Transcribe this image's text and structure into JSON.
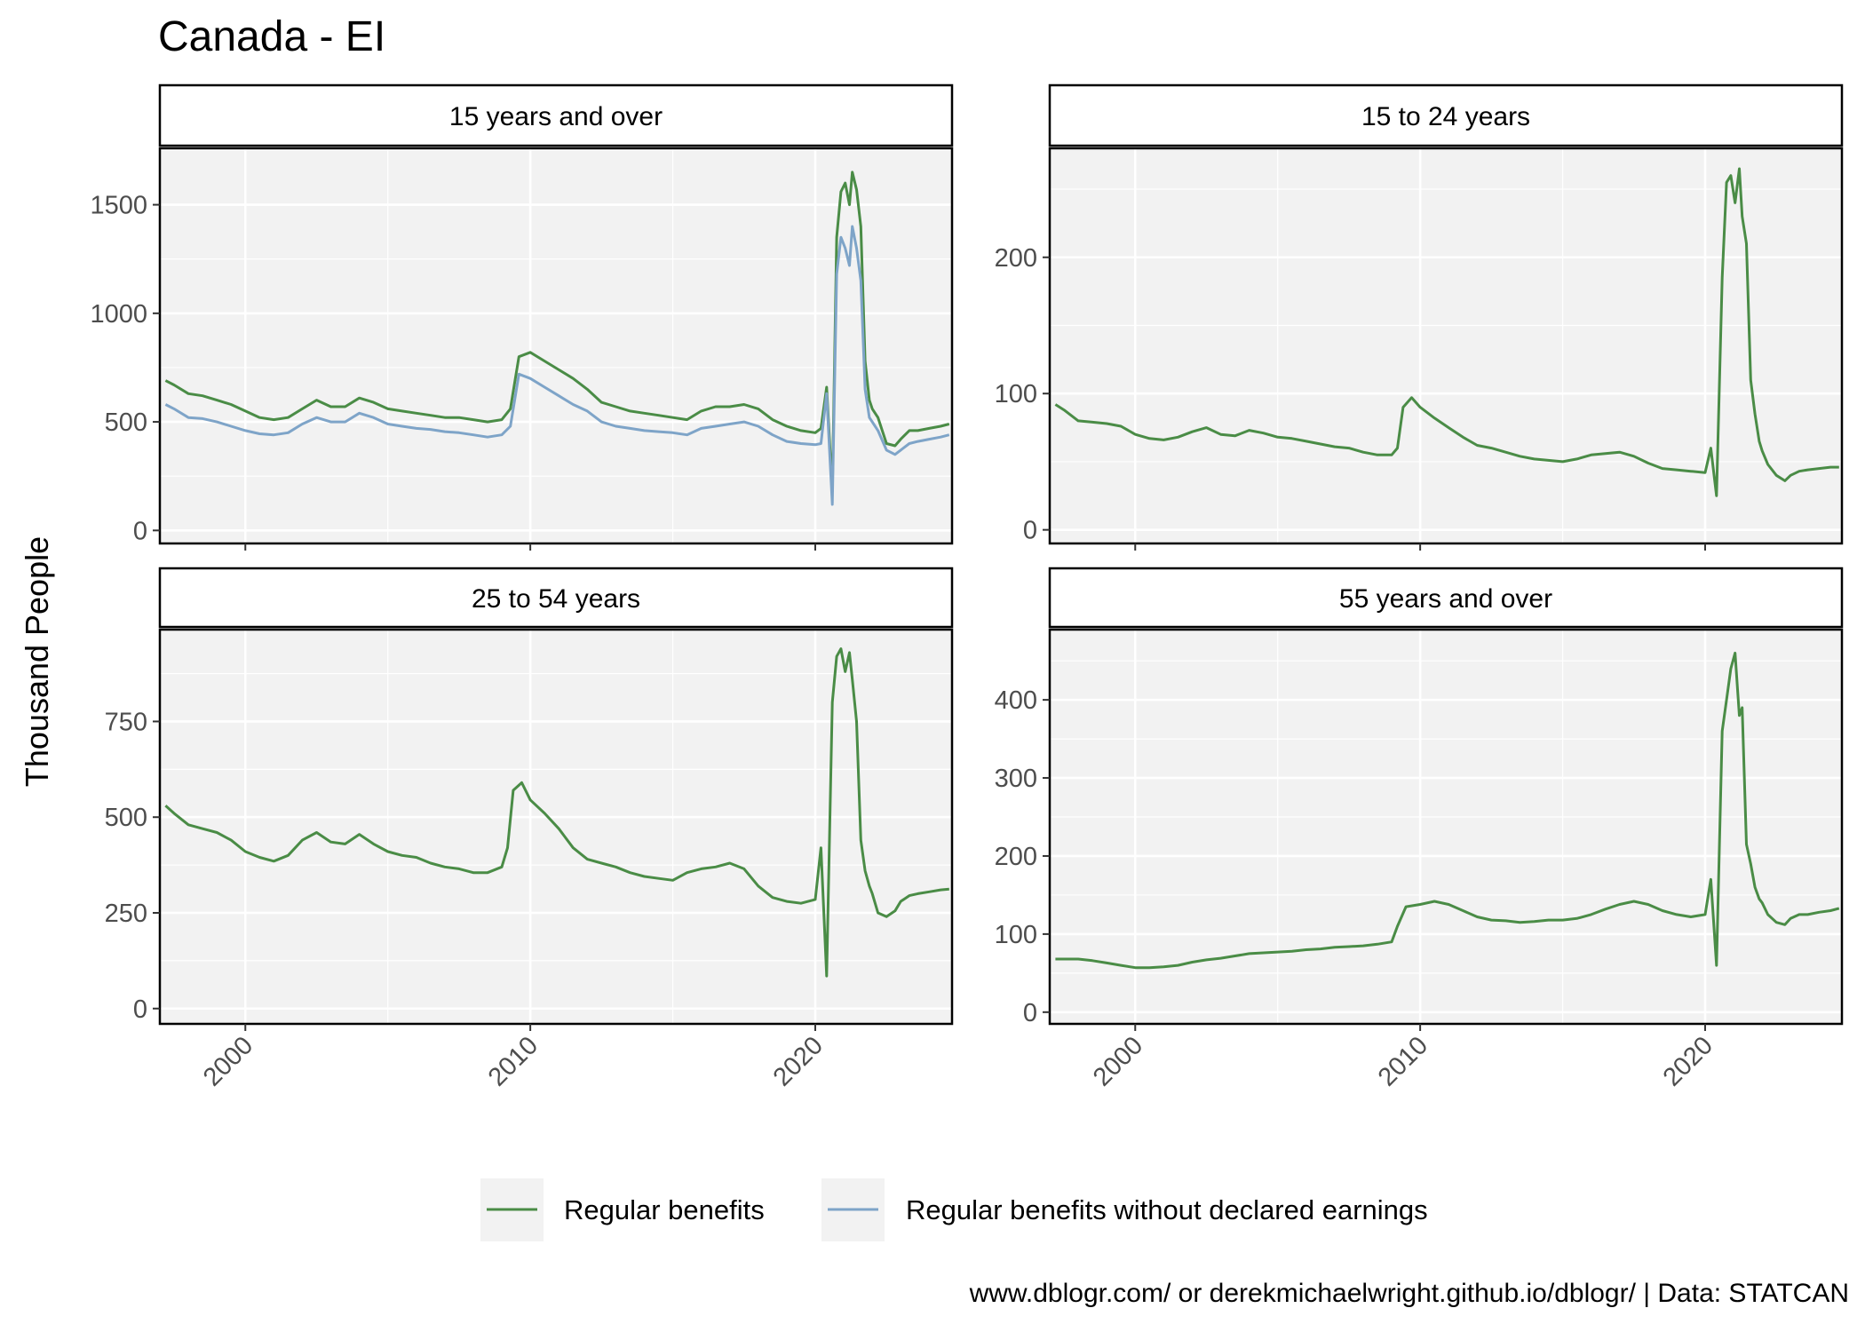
{
  "title": "Canada - EI",
  "ylabel": "Thousand People",
  "caption": "www.dblogr.com/ or derekmichaelwright.github.io/dblogr/ | Data: STATCAN",
  "colors": {
    "regular": "#4a8c46",
    "without_earnings": "#7ea4c8",
    "panel_bg": "#f2f2f2",
    "grid": "#ffffff"
  },
  "chart_data": {
    "type": "line",
    "grid": true,
    "legend_position": "bottom",
    "x_ticks": [
      2000,
      2010,
      2020
    ],
    "xlim": [
      1997,
      2024.8
    ],
    "legend": [
      {
        "name": "Regular benefits",
        "color": "#4a8c46"
      },
      {
        "name": "Regular benefits without declared earnings",
        "color": "#7ea4c8"
      }
    ],
    "panels": [
      {
        "label": "15 years and over",
        "ylim": [
          -60,
          1760
        ],
        "y_ticks": [
          0,
          500,
          1000,
          1500
        ],
        "series": [
          {
            "name": "Regular benefits",
            "color": "#4a8c46",
            "x": [
              1997.2,
              1997.5,
              1998.0,
              1998.5,
              1999.0,
              1999.5,
              2000.0,
              2000.5,
              2001.0,
              2001.5,
              2002.0,
              2002.5,
              2003.0,
              2003.5,
              2004.0,
              2004.5,
              2005.0,
              2005.5,
              2006.0,
              2006.5,
              2007.0,
              2007.5,
              2008.0,
              2008.5,
              2009.0,
              2009.3,
              2009.6,
              2010.0,
              2010.5,
              2011.0,
              2011.5,
              2012.0,
              2012.5,
              2013.0,
              2013.5,
              2014.0,
              2014.5,
              2015.0,
              2015.5,
              2016.0,
              2016.5,
              2017.0,
              2017.5,
              2018.0,
              2018.5,
              2019.0,
              2019.5,
              2020.0,
              2020.2,
              2020.4,
              2020.6,
              2020.75,
              2020.9,
              2021.05,
              2021.2,
              2021.3,
              2021.45,
              2021.6,
              2021.75,
              2021.9,
              2022.0,
              2022.2,
              2022.5,
              2022.8,
              2023.0,
              2023.3,
              2023.6,
              2024.0,
              2024.4,
              2024.7
            ],
            "y": [
              690,
              670,
              630,
              620,
              600,
              580,
              550,
              520,
              510,
              520,
              560,
              600,
              570,
              570,
              610,
              590,
              560,
              550,
              540,
              530,
              520,
              520,
              510,
              500,
              510,
              560,
              800,
              820,
              780,
              740,
              700,
              650,
              590,
              570,
              550,
              540,
              530,
              520,
              510,
              550,
              570,
              570,
              580,
              560,
              510,
              480,
              460,
              450,
              470,
              660,
              180,
              1350,
              1560,
              1600,
              1500,
              1650,
              1570,
              1400,
              780,
              600,
              560,
              520,
              400,
              390,
              420,
              460,
              460,
              470,
              480,
              490
            ]
          },
          {
            "name": "Regular benefits without declared earnings",
            "color": "#7ea4c8",
            "x": [
              1997.2,
              1997.5,
              1998.0,
              1998.5,
              1999.0,
              1999.5,
              2000.0,
              2000.5,
              2001.0,
              2001.5,
              2002.0,
              2002.5,
              2003.0,
              2003.5,
              2004.0,
              2004.5,
              2005.0,
              2005.5,
              2006.0,
              2006.5,
              2007.0,
              2007.5,
              2008.0,
              2008.5,
              2009.0,
              2009.3,
              2009.6,
              2010.0,
              2010.5,
              2011.0,
              2011.5,
              2012.0,
              2012.5,
              2013.0,
              2013.5,
              2014.0,
              2014.5,
              2015.0,
              2015.5,
              2016.0,
              2016.5,
              2017.0,
              2017.5,
              2018.0,
              2018.5,
              2019.0,
              2019.5,
              2020.0,
              2020.2,
              2020.4,
              2020.6,
              2020.75,
              2020.9,
              2021.05,
              2021.2,
              2021.3,
              2021.45,
              2021.6,
              2021.75,
              2021.9,
              2022.0,
              2022.2,
              2022.5,
              2022.8,
              2023.0,
              2023.3,
              2023.6,
              2024.0,
              2024.4,
              2024.7
            ],
            "y": [
              580,
              560,
              520,
              515,
              500,
              480,
              460,
              445,
              440,
              450,
              490,
              520,
              500,
              500,
              540,
              520,
              490,
              480,
              470,
              465,
              455,
              450,
              440,
              430,
              440,
              480,
              720,
              700,
              660,
              620,
              580,
              550,
              500,
              480,
              470,
              460,
              455,
              450,
              440,
              470,
              480,
              490,
              500,
              480,
              440,
              410,
              400,
              395,
              400,
              630,
              120,
              1180,
              1350,
              1300,
              1220,
              1400,
              1300,
              1150,
              650,
              520,
              500,
              460,
              370,
              350,
              370,
              400,
              410,
              420,
              430,
              440
            ]
          }
        ]
      },
      {
        "label": "15 to 24 years",
        "ylim": [
          -10,
          280
        ],
        "y_ticks": [
          0,
          100,
          200
        ],
        "series": [
          {
            "name": "Regular benefits",
            "color": "#4a8c46",
            "x": [
              1997.2,
              1997.5,
              1998.0,
              1998.5,
              1999.0,
              1999.5,
              2000.0,
              2000.5,
              2001.0,
              2001.5,
              2002.0,
              2002.5,
              2003.0,
              2003.5,
              2004.0,
              2004.5,
              2005.0,
              2005.5,
              2006.0,
              2006.5,
              2007.0,
              2007.5,
              2008.0,
              2008.5,
              2009.0,
              2009.2,
              2009.4,
              2009.7,
              2010.0,
              2010.5,
              2011.0,
              2011.5,
              2012.0,
              2012.5,
              2013.0,
              2013.5,
              2014.0,
              2014.5,
              2015.0,
              2015.5,
              2016.0,
              2016.5,
              2017.0,
              2017.5,
              2018.0,
              2018.5,
              2019.0,
              2019.5,
              2020.0,
              2020.2,
              2020.4,
              2020.6,
              2020.75,
              2020.9,
              2021.05,
              2021.2,
              2021.3,
              2021.45,
              2021.6,
              2021.75,
              2021.9,
              2022.0,
              2022.2,
              2022.5,
              2022.8,
              2023.0,
              2023.3,
              2023.6,
              2024.0,
              2024.4,
              2024.7
            ],
            "y": [
              92,
              88,
              80,
              79,
              78,
              76,
              70,
              67,
              66,
              68,
              72,
              75,
              70,
              69,
              73,
              71,
              68,
              67,
              65,
              63,
              61,
              60,
              57,
              55,
              55,
              60,
              90,
              97,
              90,
              82,
              75,
              68,
              62,
              60,
              57,
              54,
              52,
              51,
              50,
              52,
              55,
              56,
              57,
              54,
              49,
              45,
              44,
              43,
              42,
              60,
              25,
              185,
              255,
              260,
              240,
              265,
              230,
              210,
              110,
              85,
              65,
              58,
              48,
              40,
              36,
              40,
              43,
              44,
              45,
              46,
              46
            ]
          }
        ]
      },
      {
        "label": "25 to 54 years",
        "ylim": [
          -40,
          990
        ],
        "y_ticks": [
          0,
          250,
          500,
          750
        ],
        "series": [
          {
            "name": "Regular benefits",
            "color": "#4a8c46",
            "x": [
              1997.2,
              1997.5,
              1998.0,
              1998.5,
              1999.0,
              1999.5,
              2000.0,
              2000.5,
              2001.0,
              2001.5,
              2002.0,
              2002.5,
              2003.0,
              2003.5,
              2004.0,
              2004.5,
              2005.0,
              2005.5,
              2006.0,
              2006.5,
              2007.0,
              2007.5,
              2008.0,
              2008.5,
              2009.0,
              2009.2,
              2009.4,
              2009.7,
              2010.0,
              2010.5,
              2011.0,
              2011.5,
              2012.0,
              2012.5,
              2013.0,
              2013.5,
              2014.0,
              2014.5,
              2015.0,
              2015.5,
              2016.0,
              2016.5,
              2017.0,
              2017.5,
              2018.0,
              2018.5,
              2019.0,
              2019.5,
              2020.0,
              2020.2,
              2020.4,
              2020.6,
              2020.75,
              2020.9,
              2021.05,
              2021.2,
              2021.3,
              2021.45,
              2021.6,
              2021.75,
              2021.9,
              2022.0,
              2022.2,
              2022.5,
              2022.8,
              2023.0,
              2023.3,
              2023.6,
              2024.0,
              2024.4,
              2024.7
            ],
            "y": [
              530,
              510,
              480,
              470,
              460,
              440,
              410,
              395,
              385,
              400,
              440,
              460,
              435,
              430,
              455,
              430,
              410,
              400,
              395,
              380,
              370,
              365,
              355,
              355,
              370,
              420,
              570,
              590,
              545,
              510,
              470,
              420,
              390,
              380,
              370,
              355,
              345,
              340,
              335,
              355,
              365,
              370,
              380,
              365,
              320,
              290,
              280,
              275,
              285,
              420,
              85,
              800,
              920,
              940,
              880,
              930,
              860,
              750,
              440,
              360,
              320,
              300,
              250,
              240,
              255,
              280,
              295,
              300,
              305,
              310,
              312
            ]
          }
        ]
      },
      {
        "label": "55 years and over",
        "ylim": [
          -15,
          490
        ],
        "y_ticks": [
          0,
          100,
          200,
          300,
          400
        ],
        "series": [
          {
            "name": "Regular benefits",
            "color": "#4a8c46",
            "x": [
              1997.2,
              1997.5,
              1998.0,
              1998.5,
              1999.0,
              1999.5,
              2000.0,
              2000.5,
              2001.0,
              2001.5,
              2002.0,
              2002.5,
              2003.0,
              2003.5,
              2004.0,
              2004.5,
              2005.0,
              2005.5,
              2006.0,
              2006.5,
              2007.0,
              2007.5,
              2008.0,
              2008.5,
              2009.0,
              2009.2,
              2009.5,
              2010.0,
              2010.5,
              2011.0,
              2011.5,
              2012.0,
              2012.5,
              2013.0,
              2013.5,
              2014.0,
              2014.5,
              2015.0,
              2015.5,
              2016.0,
              2016.5,
              2017.0,
              2017.5,
              2018.0,
              2018.5,
              2019.0,
              2019.5,
              2020.0,
              2020.2,
              2020.4,
              2020.6,
              2020.75,
              2020.9,
              2021.05,
              2021.2,
              2021.3,
              2021.45,
              2021.6,
              2021.75,
              2021.9,
              2022.0,
              2022.2,
              2022.5,
              2022.8,
              2023.0,
              2023.3,
              2023.6,
              2024.0,
              2024.4,
              2024.7
            ],
            "y": [
              68,
              68,
              68,
              66,
              63,
              60,
              57,
              57,
              58,
              60,
              64,
              67,
              69,
              72,
              75,
              76,
              77,
              78,
              80,
              81,
              83,
              84,
              85,
              87,
              90,
              110,
              135,
              138,
              142,
              138,
              130,
              122,
              118,
              117,
              115,
              116,
              118,
              118,
              120,
              125,
              132,
              138,
              142,
              138,
              130,
              125,
              122,
              125,
              170,
              60,
              360,
              400,
              440,
              460,
              380,
              390,
              215,
              190,
              160,
              145,
              140,
              125,
              115,
              112,
              120,
              125,
              125,
              128,
              130,
              133
            ]
          }
        ]
      }
    ]
  }
}
